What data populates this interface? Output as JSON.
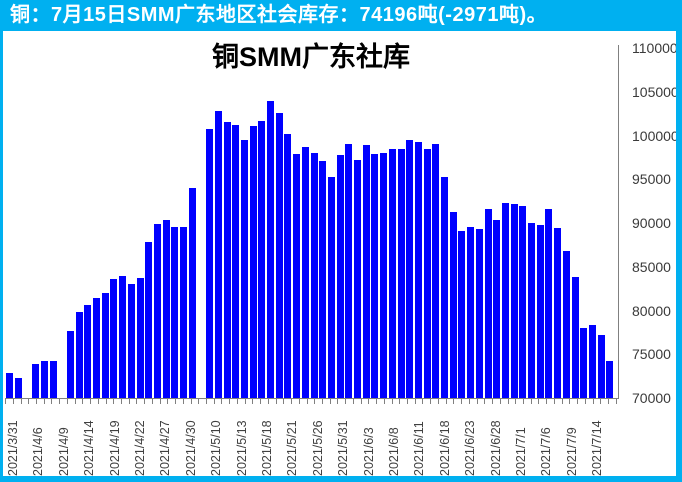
{
  "header": {
    "text": "铜：7月15日SMM广东地区社会库存：74196吨(-2971吨)。",
    "bg_color": "#00B0F0",
    "text_color": "#FFFFFF"
  },
  "frame_color": "#00B0F0",
  "chart_data": {
    "type": "bar",
    "title": "铜SMM广东社库",
    "bar_color": "#0000FF",
    "unit": "吨",
    "ylim": [
      70000,
      110000
    ],
    "y_tick_step": 5000,
    "y_axis_side": "right",
    "grid": false,
    "y_ticks": [
      "110000",
      "105000",
      "100000",
      "95000",
      "90000",
      "85000",
      "80000",
      "75000",
      "70000"
    ],
    "x_labels": [
      "2021/3/31",
      "2021/4/6",
      "2021/4/9",
      "2021/4/14",
      "2021/4/19",
      "2021/4/22",
      "2021/4/27",
      "2021/4/30",
      "2021/5/10",
      "2021/5/13",
      "2021/5/18",
      "2021/5/21",
      "2021/5/26",
      "2021/5/31",
      "2021/6/3",
      "2021/6/8",
      "2021/6/11",
      "2021/6/18",
      "2021/6/23",
      "2021/6/28",
      "2021/7/1",
      "2021/7/6",
      "2021/7/9",
      "2021/7/14"
    ],
    "values": [
      72900,
      72300,
      null,
      73900,
      74270,
      74270,
      null,
      77700,
      79860,
      80620,
      81420,
      81990,
      83660,
      83960,
      83090,
      83770,
      87870,
      89860,
      90310,
      89580,
      89580,
      94030,
      null,
      100800,
      102770,
      101550,
      101250,
      99540,
      101060,
      101710,
      103910,
      102580,
      100180,
      97900,
      98670,
      98020,
      97070,
      95250,
      97760,
      98980,
      97260,
      98900,
      97910,
      98020,
      98520,
      98410,
      99470,
      99280,
      98520,
      98980,
      95250,
      91290,
      89090,
      89550,
      89320,
      91560,
      90350,
      92250,
      92130,
      91940,
      90010,
      89780,
      91560,
      89480,
      86810,
      83880,
      78000,
      78380,
      77167,
      74196
    ]
  }
}
